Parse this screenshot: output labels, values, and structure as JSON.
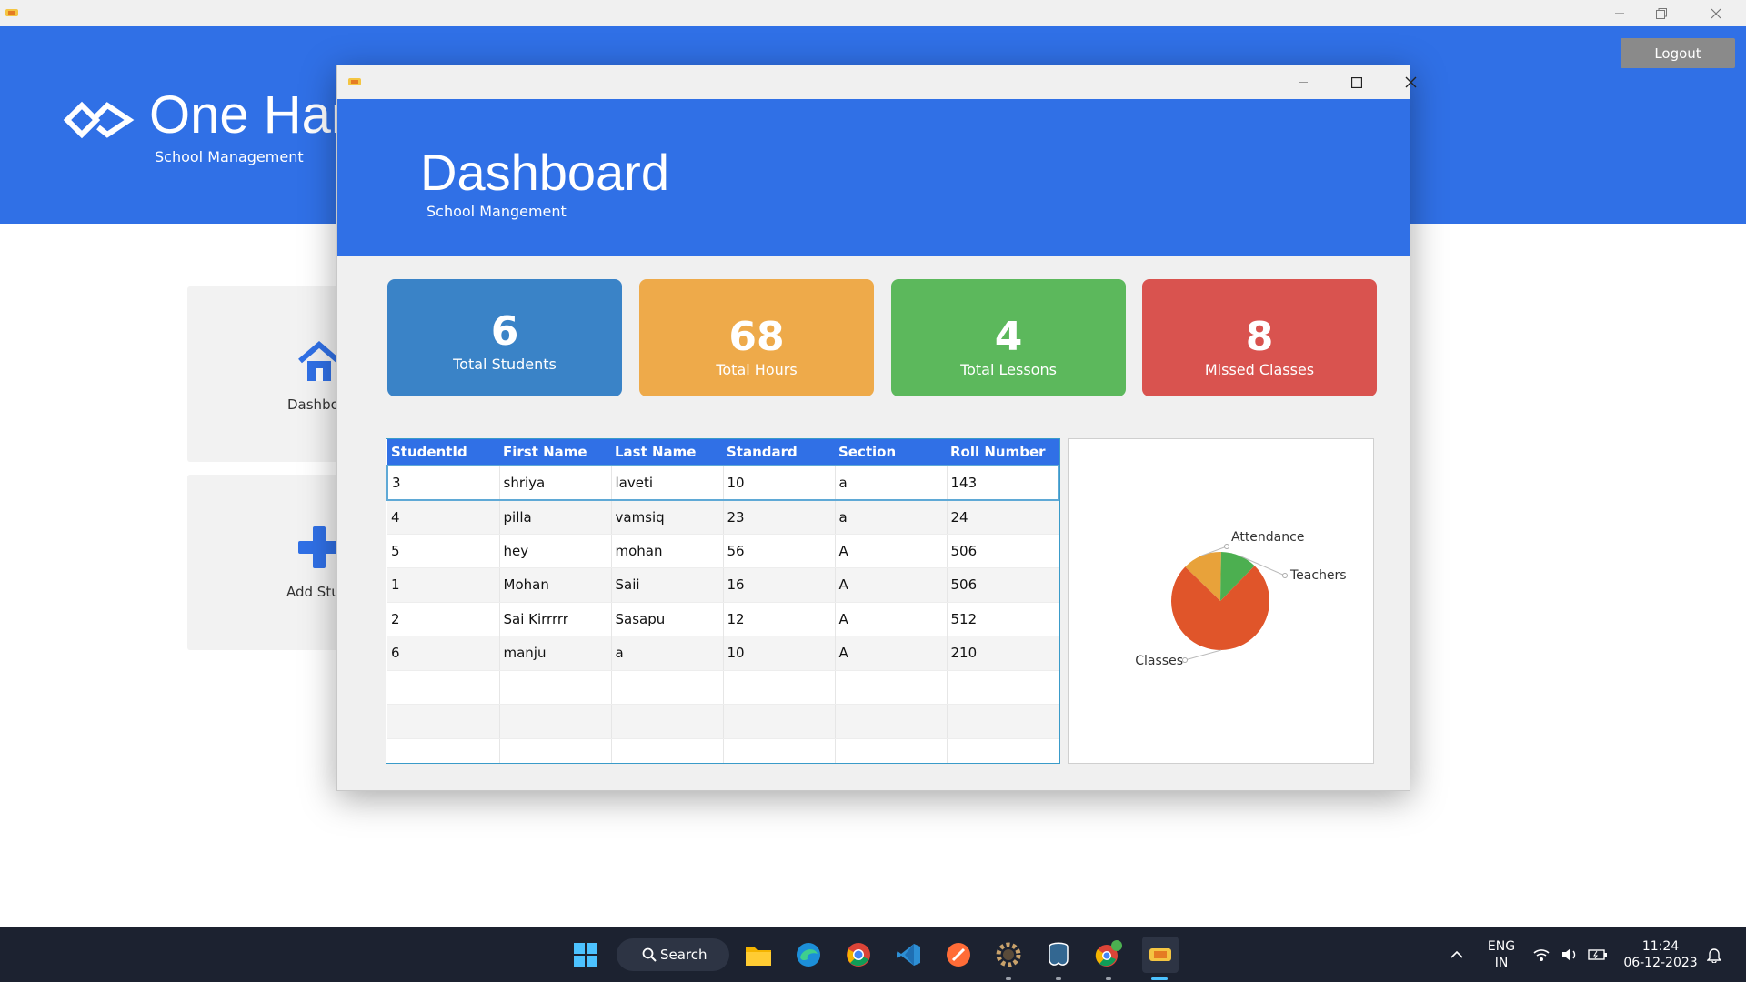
{
  "background_app": {
    "title": "One Hand",
    "subtitle": "School Management",
    "logout_label": "Logout",
    "tiles": [
      {
        "label": "Dashboard",
        "icon": "home-icon"
      },
      {
        "label": "Add Student",
        "icon": "plus-icon"
      }
    ]
  },
  "dialog": {
    "title": "Dashboard",
    "subtitle": "School Mangement",
    "window_controls": {
      "minimize": "minimize-icon",
      "maximize": "maximize-icon",
      "close": "close-icon"
    }
  },
  "stats": [
    {
      "value": "6",
      "label": "Total Students",
      "color": "#3a83c7"
    },
    {
      "value": "68",
      "label": "Total Hours",
      "color": "#eeaa4a"
    },
    {
      "value": "4",
      "label": "Total Lessons",
      "color": "#5cb85c"
    },
    {
      "value": "8",
      "label": "Missed Classes",
      "color": "#d9534f"
    }
  ],
  "table": {
    "columns": [
      "StudentId",
      "First Name",
      "Last Name",
      "Standard",
      "Section",
      "Roll Number"
    ],
    "rows": [
      [
        "3",
        "shriya",
        "laveti",
        "10",
        "a",
        "143"
      ],
      [
        "4",
        "pilla",
        "vamsiq",
        "23",
        "a",
        "24"
      ],
      [
        "5",
        "hey",
        "mohan",
        "56",
        "A",
        "506"
      ],
      [
        "1",
        "Mohan",
        "Saii",
        "16",
        "A",
        "506"
      ],
      [
        "2",
        "Sai Kirrrrr",
        "Sasapu",
        "12",
        "A",
        "512"
      ],
      [
        "6",
        "manju",
        "a",
        "10",
        "A",
        "210"
      ]
    ],
    "selected_row": 0,
    "header_color": "#3070e6"
  },
  "chart_data": {
    "type": "pie",
    "title": "",
    "slices": [
      {
        "label": "Attendance",
        "value": 0.13,
        "color": "#e8a23a"
      },
      {
        "label": "Teachers",
        "value": 0.12,
        "color": "#4caf50"
      },
      {
        "label": "Classes",
        "value": 0.75,
        "color": "#e0552a"
      }
    ]
  },
  "taskbar": {
    "search_label": "Search",
    "language": "ENG",
    "region": "IN",
    "time": "11:24",
    "date": "06-12-2023",
    "apps": [
      "windows-start-icon",
      "file-explorer-icon",
      "edge-icon",
      "chrome-icon",
      "vscode-icon",
      "postman-icon",
      "settings-gear-icon",
      "postgres-icon",
      "chrome-profile-icon",
      "java-app-icon"
    ]
  }
}
